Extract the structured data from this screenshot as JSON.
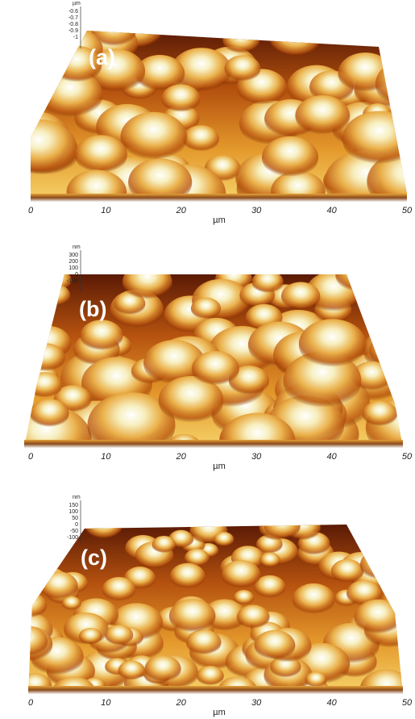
{
  "panels": [
    {
      "label": "(a)",
      "x_ticks": [
        "0",
        "10",
        "20",
        "30",
        "40",
        "50"
      ],
      "x_unit": "µm",
      "z_unit": "µm",
      "z_ticks": [
        "-0.6",
        "-0.7",
        "-0.8",
        "-0.9",
        "-1"
      ]
    },
    {
      "label": "(b)",
      "x_ticks": [
        "0",
        "10",
        "20",
        "30",
        "40",
        "50"
      ],
      "x_unit": "µm",
      "z_unit": "nm",
      "z_ticks": [
        "300",
        "200",
        "100",
        "0",
        "-100"
      ]
    },
    {
      "label": "(c)",
      "x_ticks": [
        "0",
        "10",
        "20",
        "30",
        "40",
        "50"
      ],
      "x_unit": "µm",
      "z_unit": "nm",
      "z_ticks": [
        "150",
        "100",
        "50",
        "0",
        "-50",
        "-100"
      ]
    }
  ]
}
